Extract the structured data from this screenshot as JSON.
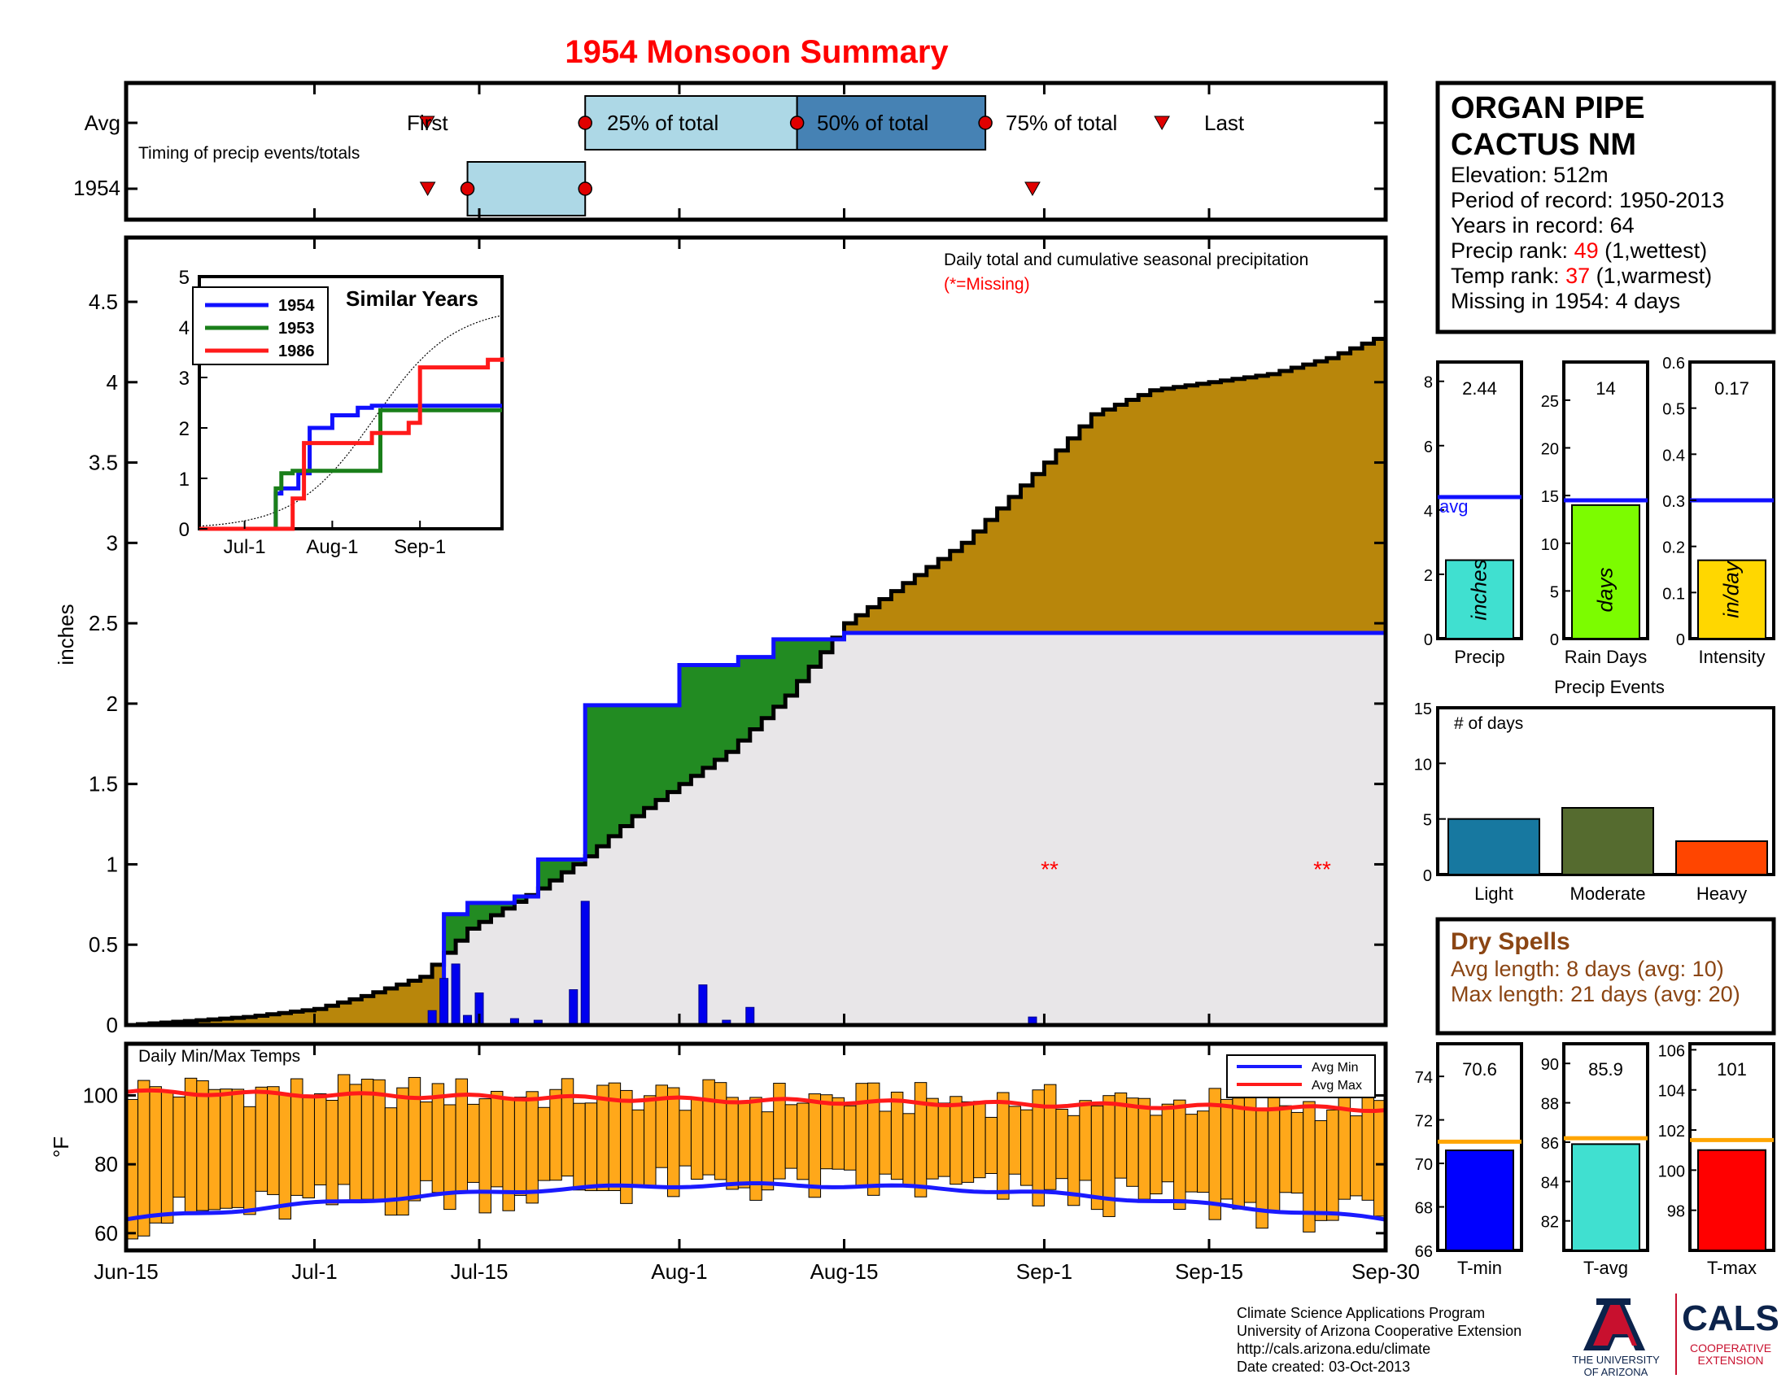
{
  "title": "1954 Monsoon Summary",
  "timing": {
    "rows": [
      "Avg",
      "1954"
    ],
    "subtitle": "Timing of precip events/totals",
    "labels": {
      "first": "First",
      "q25": "25% of total",
      "q50": "50% of total",
      "q75": "75% of total",
      "last": "Last"
    },
    "avg": {
      "first": "Jul-10",
      "q25": "Jul-24",
      "q50": "Aug-11",
      "q75": "Aug-27",
      "last": "Sep-11"
    },
    "year": {
      "first": "Jul-12",
      "q25": "Jul-14",
      "q50": "Jul-24",
      "q75": "Jul-24",
      "last": "Aug-31"
    }
  },
  "station": {
    "name_line1": "ORGAN PIPE",
    "name_line2": "CACTUS NM",
    "elevation_label": "Elevation: 512m",
    "period_label": "Period of record: 1950-2013",
    "years_label": "Years in record: 64",
    "precip_rank_prefix": "Precip rank: ",
    "precip_rank": "49",
    "precip_rank_suffix": " (1,wettest)",
    "temp_rank_prefix": "Temp rank: ",
    "temp_rank": "37",
    "temp_rank_suffix": " (1,warmest)",
    "missing_label": "Missing in 1954: 4 days",
    "rank_color": "#ff0000"
  },
  "main_chart": {
    "annotation": "Daily total and cumulative seasonal precipitation",
    "missing_note": "(*=Missing)",
    "missing_marks": [
      "**",
      "**"
    ],
    "ylabel": "inches",
    "y_ticks": [
      "0",
      "0.5",
      "1",
      "1.5",
      "2",
      "2.5",
      "3",
      "3.5",
      "4",
      "4.5"
    ],
    "x_ticks": [
      "Jun-15",
      "Jul-1",
      "Jul-15",
      "Aug-1",
      "Aug-15",
      "Sep-1",
      "Sep-15",
      "Sep-30"
    ]
  },
  "inset": {
    "title": "Similar Years",
    "legend": [
      "1954",
      "1953",
      "1986"
    ],
    "y_ticks": [
      "0",
      "1",
      "2",
      "3",
      "4",
      "5"
    ],
    "x_ticks": [
      "Jul-1",
      "Aug-1",
      "Sep-1"
    ]
  },
  "temps": {
    "title": "Daily Min/Max Temps",
    "ylabel": "°F",
    "y_ticks": [
      "60",
      "80",
      "100"
    ],
    "legend": [
      "Avg Min",
      "Avg Max"
    ]
  },
  "summary_bars": {
    "precip": {
      "value": "2.44",
      "label": "Precip",
      "unit": "inches",
      "avg_label": "avg",
      "ticks": [
        "0",
        "2",
        "4",
        "6",
        "8"
      ]
    },
    "rain_days": {
      "value": "14",
      "label": "Rain Days",
      "unit": "days",
      "ticks": [
        "0",
        "5",
        "10",
        "15",
        "20",
        "25"
      ]
    },
    "intensity": {
      "value": "0.17",
      "label": "Intensity",
      "unit": "in/day",
      "ticks": [
        "0",
        "0.1",
        "0.2",
        "0.3",
        "0.4",
        "0.5",
        "0.6"
      ]
    }
  },
  "events": {
    "title": "Precip Events",
    "ylabel": "# of days",
    "ticks": [
      "0",
      "5",
      "10",
      "15"
    ],
    "labels": [
      "Light",
      "Moderate",
      "Heavy"
    ]
  },
  "dry_spells": {
    "title": "Dry Spells",
    "avg_line": "Avg length: 8 days (avg: 10)",
    "max_line": "Max length: 21 days (avg: 20)"
  },
  "temp_bars": {
    "tmin": {
      "value": "70.6",
      "label": "T-min",
      "ticks": [
        "66",
        "68",
        "70",
        "72",
        "74"
      ]
    },
    "tavg": {
      "value": "85.9",
      "label": "T-avg",
      "ticks": [
        "82",
        "84",
        "86",
        "88",
        "90"
      ]
    },
    "tmax": {
      "value": "101",
      "label": "T-max",
      "ticks": [
        "98",
        "100",
        "102",
        "104",
        "106"
      ]
    }
  },
  "footer": {
    "line1": "Climate Science Applications Program",
    "line2": "University of Arizona Cooperative Extension",
    "line3": "http://cals.arizona.edu/climate",
    "line4": " Date created: 03-Oct-2013",
    "ua_line1": "THE UNIVERSITY",
    "ua_line2": "OF ARIZONA",
    "cals": "CALS",
    "cals_line1": "COOPERATIVE",
    "cals_line2": "EXTENSION"
  },
  "colors": {
    "title": "#ff0000",
    "cumulative_year": "#b8860b",
    "above_avg": "#228b22",
    "avg_fill": "#e8e6e8",
    "avg_line": "#1010ff",
    "daily_bar": "#0000ee",
    "temp_bar": "#ffa81a",
    "avg_max": "#ff1a1a",
    "avg_min": "#1a1aff",
    "precip_bar": "#40e0d0",
    "days_bar": "#7cfc00",
    "intensity_bar": "#ffd700",
    "light": "#1778a0",
    "moderate": "#556b2f",
    "heavy": "#ff4500",
    "dry": "#8b4513",
    "tmin_bar": "#0000ff",
    "tavg_bar": "#40e0d0",
    "tmax_bar": "#ff0000",
    "orange_avg": "#ffa500",
    "ua_red": "#c8102e",
    "ua_blue": "#0c234b"
  },
  "chart_data": [
    {
      "type": "area",
      "title": "Daily total and cumulative seasonal precipitation",
      "ylabel": "inches",
      "ylim": [
        0,
        4.9
      ],
      "x_range": [
        "Jun-15",
        "Sep-30"
      ],
      "series": [
        {
          "name": "",
          "kind": "cumulative_1954_steps",
          "x": [
            "Jun-15",
            "Jun-25",
            "Jul-1",
            "Jul-5",
            "Jul-10",
            "Jul-12",
            "Jul-14",
            "Jul-20",
            "Jul-24",
            "Jul-28",
            "Aug-1",
            "Aug-5",
            "Aug-10",
            "Aug-15",
            "Aug-20",
            "Aug-25",
            "Sep-1",
            "Sep-5",
            "Sep-10",
            "Sep-15",
            "Sep-20",
            "Sep-25",
            "Sep-30"
          ],
          "values": [
            0,
            0.05,
            0.1,
            0.18,
            0.3,
            0.45,
            0.6,
            0.85,
            1.05,
            1.3,
            1.5,
            1.7,
            2.05,
            2.5,
            2.75,
            3.0,
            3.5,
            3.8,
            3.95,
            4.0,
            4.05,
            4.15,
            4.3
          ]
        },
        {
          "name": "",
          "kind": "cumulative_1954_step",
          "x": [
            "Jun-15",
            "Jul-12",
            "Jul-14",
            "Jul-18",
            "Jul-20",
            "Jul-24",
            "Aug-1",
            "Aug-6",
            "Aug-9",
            "Aug-15",
            "Sep-30"
          ],
          "values": [
            0,
            0.69,
            0.76,
            0.8,
            1.03,
            1.99,
            2.24,
            2.29,
            2.4,
            2.44,
            2.44
          ]
        },
        {
          "name": "",
          "kind": "daily",
          "x": [
            "Jul-11",
            "Jul-12",
            "Jul-13",
            "Jul-14",
            "Jul-15",
            "Jul-18",
            "Jul-20",
            "Jul-23",
            "Jul-24",
            "Aug-3",
            "Aug-5",
            "Aug-7",
            "Aug-31"
          ],
          "values": [
            0.09,
            0.29,
            0.38,
            0.06,
            0.2,
            0.04,
            0.03,
            0.22,
            0.77,
            0.25,
            0.03,
            0.11,
            0.05
          ]
        }
      ]
    },
    {
      "type": "line",
      "title": "Similar Years",
      "ylim": [
        0,
        5
      ],
      "x_ticks": [
        "Jul-1",
        "Aug-1",
        "Sep-1"
      ],
      "series": [
        {
          "name": "1954",
          "x": [
            "Jun-15",
            "Jul-12",
            "Jul-14",
            "Jul-20",
            "Jul-24",
            "Aug-1",
            "Aug-10",
            "Aug-15",
            "Sep-30"
          ],
          "values": [
            0,
            0.7,
            0.8,
            1.1,
            2.0,
            2.25,
            2.4,
            2.44,
            2.44
          ]
        },
        {
          "name": "1953",
          "x": [
            "Jun-15",
            "Jul-12",
            "Jul-14",
            "Jul-18",
            "Aug-15",
            "Aug-18",
            "Sep-30"
          ],
          "values": [
            0,
            0.8,
            1.1,
            1.15,
            1.15,
            2.35,
            2.35
          ]
        },
        {
          "name": "1986",
          "x": [
            "Jun-15",
            "Jul-14",
            "Jul-18",
            "Jul-22",
            "Aug-15",
            "Aug-28",
            "Sep-1",
            "Sep-25",
            "Sep-30"
          ],
          "values": [
            0,
            0,
            0.6,
            1.7,
            1.9,
            2.1,
            3.2,
            3.35,
            3.4
          ]
        }
      ]
    },
    {
      "type": "bar",
      "title": "Daily Min/Max Temps",
      "ylabel": "°F",
      "ylim": [
        55,
        115
      ],
      "series": [
        {
          "name": "Avg Min",
          "start": 64,
          "end": 63
        },
        {
          "name": "Avg Max",
          "start": 101,
          "end": 96
        }
      ]
    },
    {
      "type": "bar",
      "categories": [
        "Precip",
        "Rain Days",
        "Intensity"
      ],
      "values": [
        2.44,
        14,
        0.17
      ],
      "averages": [
        4.4,
        14.5,
        0.3
      ]
    },
    {
      "type": "bar",
      "title": "Precip Events",
      "ylabel": "# of days",
      "categories": [
        "Light",
        "Moderate",
        "Heavy"
      ],
      "values": [
        5,
        6,
        3
      ],
      "ylim": [
        0,
        15
      ]
    },
    {
      "type": "bar",
      "categories": [
        "T-min",
        "T-avg",
        "T-max"
      ],
      "values": [
        70.6,
        85.9,
        101
      ],
      "averages": [
        71,
        86.2,
        101.5
      ]
    }
  ]
}
